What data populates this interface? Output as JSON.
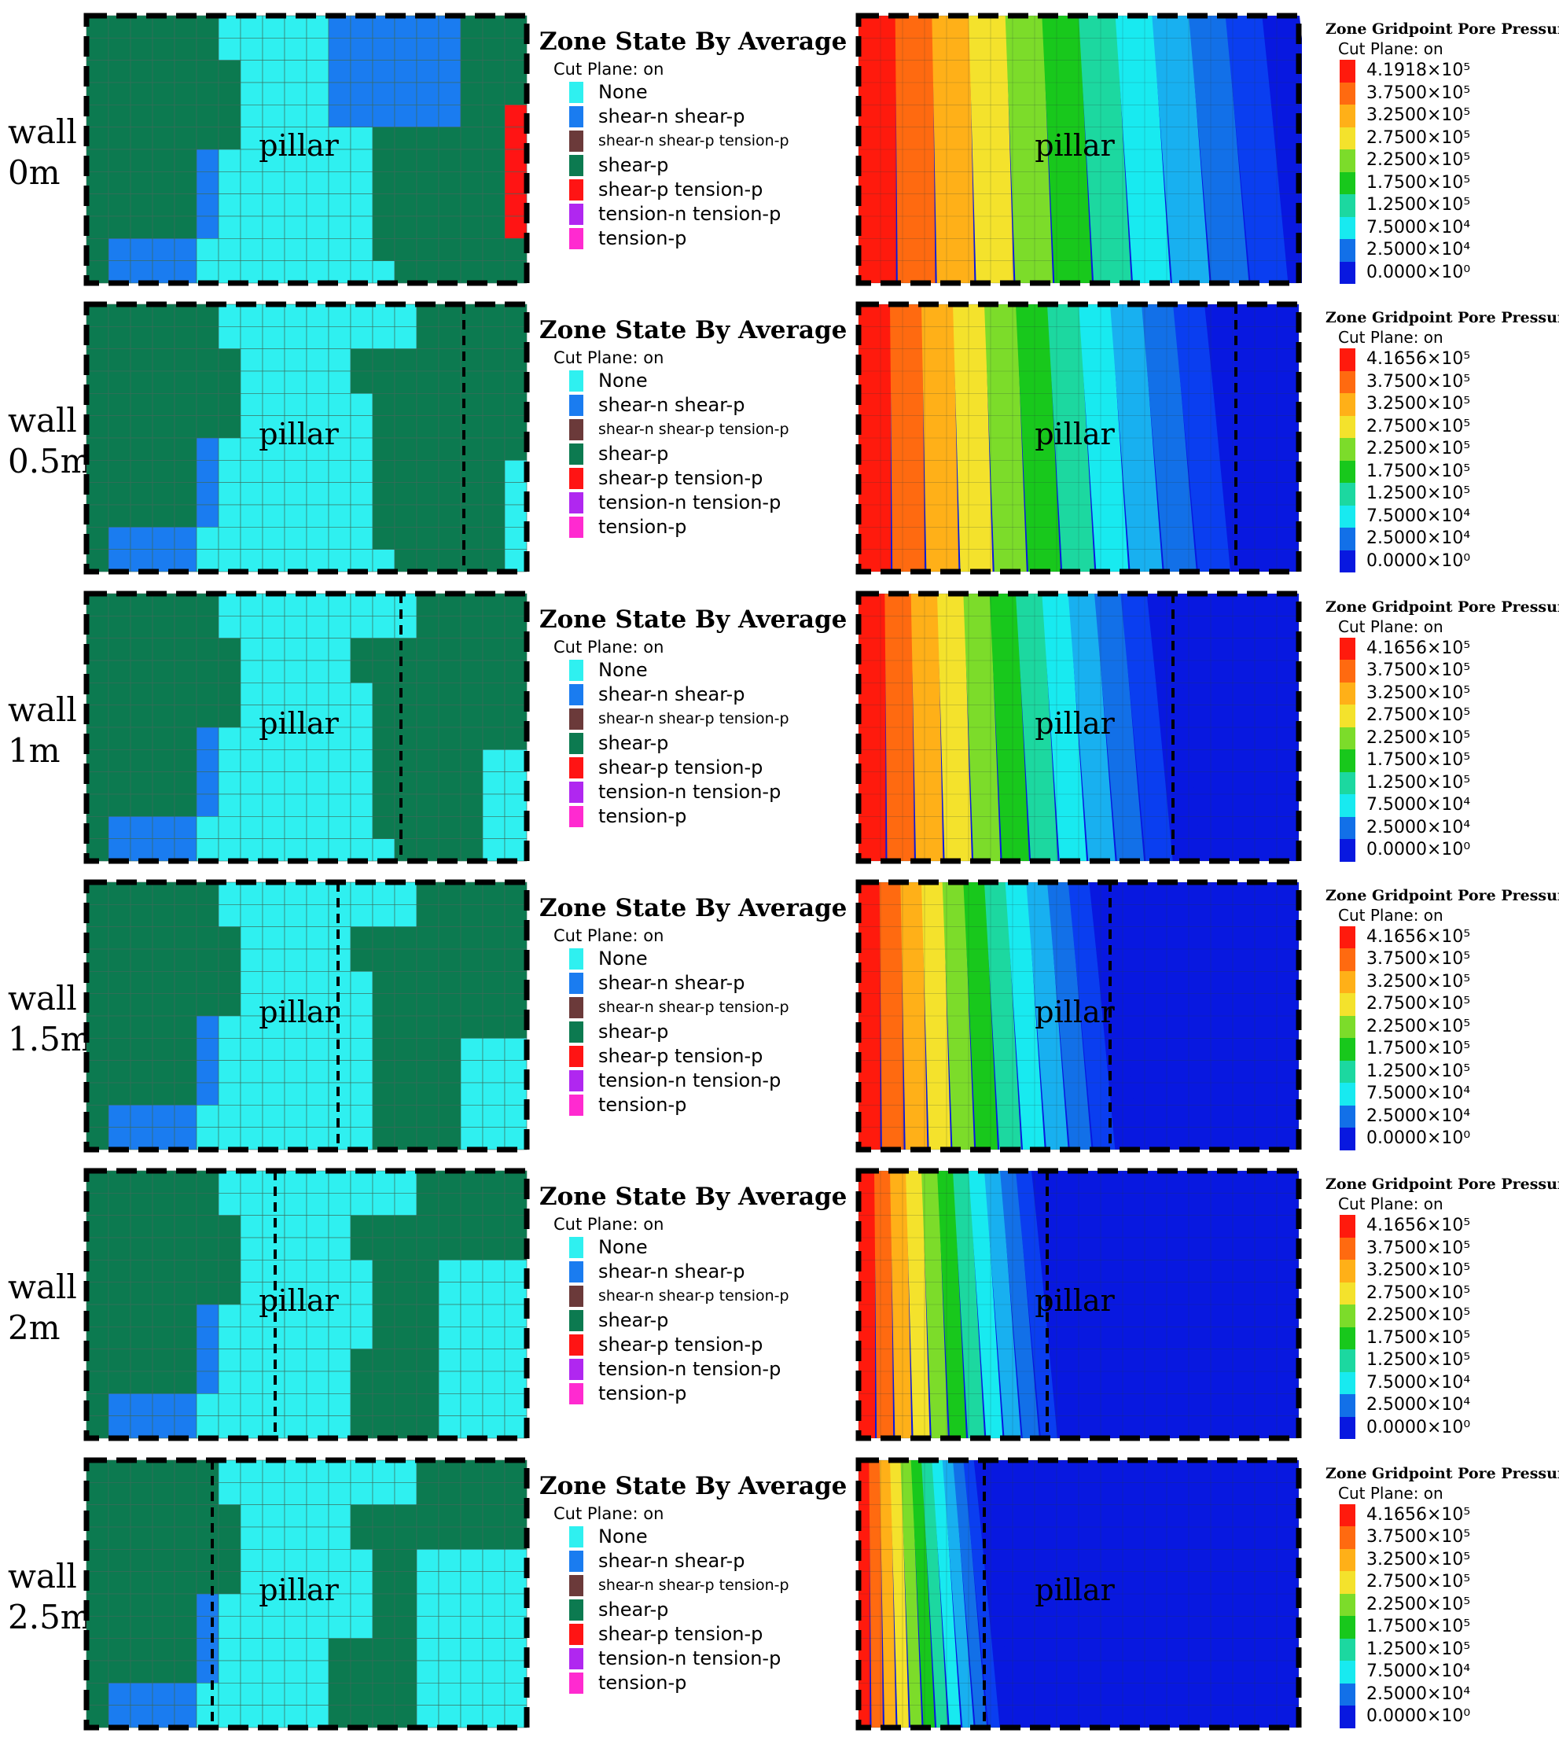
{
  "figure": {
    "pillar_label": "pillar",
    "zone_panel": {
      "title": "Zone State By Average",
      "subtitle": "Cut Plane: on",
      "legend": [
        {
          "label": "None",
          "color": "#2ff0f0"
        },
        {
          "label": "shear-n shear-p",
          "color": "#1a7cf0"
        },
        {
          "label": "shear-n shear-p tension-p",
          "color": "#6b3a3a"
        },
        {
          "label": "shear-p",
          "color": "#0c7a50"
        },
        {
          "label": "shear-p tension-p",
          "color": "#ff1414"
        },
        {
          "label": "tension-n tension-p",
          "color": "#b027f0"
        },
        {
          "label": "tension-p",
          "color": "#ff2ad0"
        }
      ]
    },
    "pressure_panel": {
      "title": "Zone Gridpoint Pore Pressure",
      "subtitle": "Cut Plane: on",
      "colors": [
        "#ff1a0d",
        "#ff6a10",
        "#ffb018",
        "#f4e22c",
        "#7cdc2a",
        "#18c81c",
        "#1cd8a0",
        "#18eaf0",
        "#18b0f0",
        "#1270e8",
        "#0a3ef0",
        "#0818e0"
      ],
      "legend_values": [
        "3.7500×10⁵",
        "3.2500×10⁵",
        "2.7500×10⁵",
        "2.2500×10⁵",
        "1.7500×10⁵",
        "1.2500×10⁵",
        "7.5000×10⁴",
        "2.5000×10⁴",
        "0.0000×10⁰"
      ]
    },
    "rows": [
      {
        "wall_label": "wall",
        "distance_label": "0m",
        "max_pressure": "4.1918×10⁵",
        "wall_offset_m": 0
      },
      {
        "wall_label": "wall",
        "distance_label": "0.5m",
        "max_pressure": "4.1656×10⁵",
        "wall_offset_m": 0.5
      },
      {
        "wall_label": "wall",
        "distance_label": "1m",
        "max_pressure": "4.1656×10⁵",
        "wall_offset_m": 1
      },
      {
        "wall_label": "wall",
        "distance_label": "1.5m",
        "max_pressure": "4.1656×10⁵",
        "wall_offset_m": 1.5
      },
      {
        "wall_label": "wall",
        "distance_label": "2m",
        "max_pressure": "4.1656×10⁵",
        "wall_offset_m": 2
      },
      {
        "wall_label": "wall",
        "distance_label": "2.5m",
        "max_pressure": "4.1656×10⁵",
        "wall_offset_m": 2.5
      }
    ]
  }
}
